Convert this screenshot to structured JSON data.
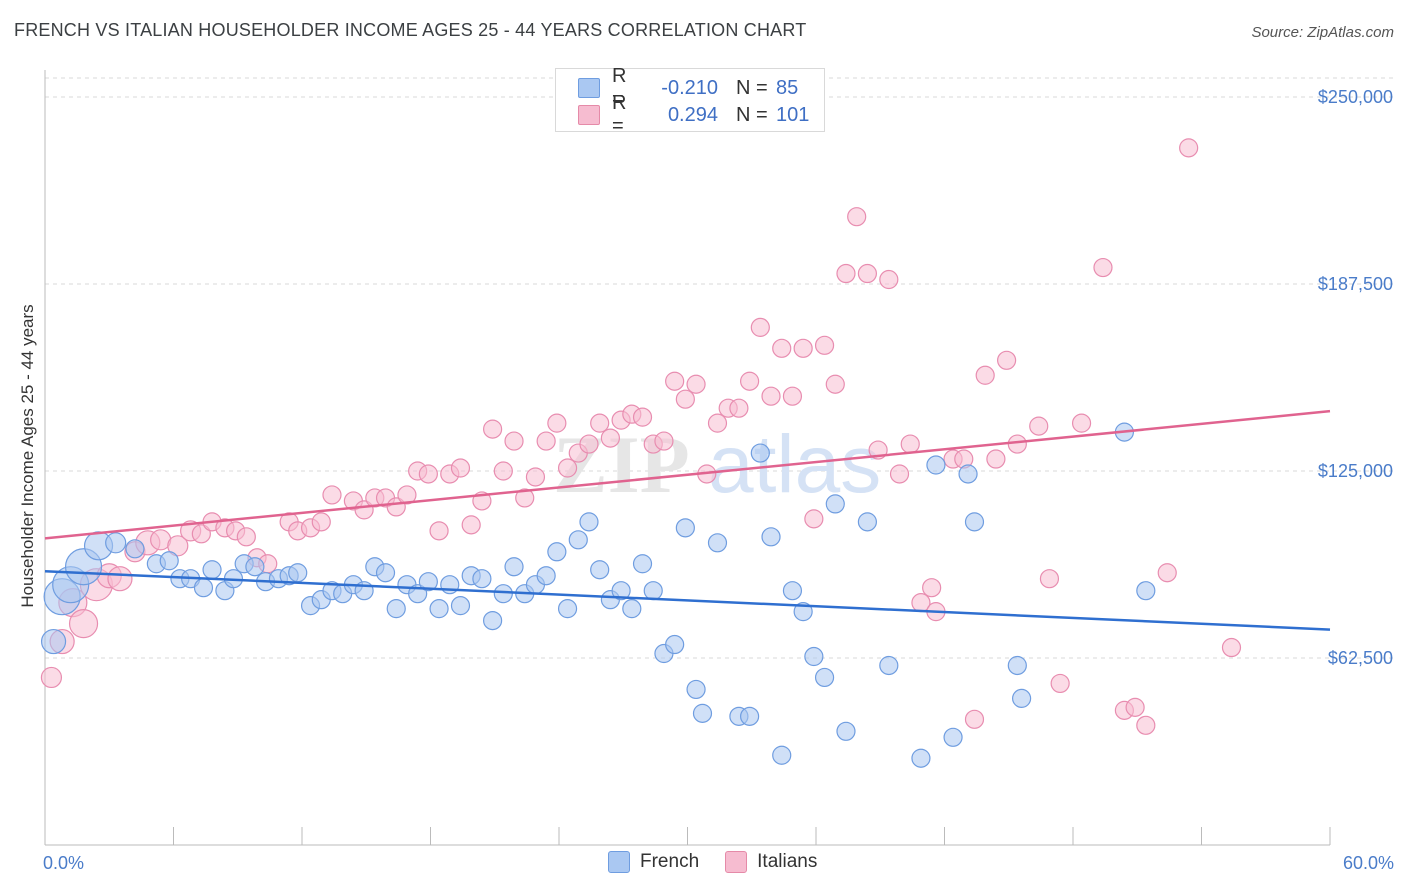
{
  "header": {
    "title": "FRENCH VS ITALIAN HOUSEHOLDER INCOME AGES 25 - 44 YEARS CORRELATION CHART",
    "source": "Source: ZipAtlas.com"
  },
  "watermark": {
    "part1": "ZIP",
    "part2": "atlas"
  },
  "legend": {
    "rows": [
      {
        "r_label": "R =",
        "r_value": "-0.210",
        "n_label": "N =",
        "n_value": "85",
        "fill": "#aac8f2",
        "stroke": "#6f9de0"
      },
      {
        "r_label": "R =",
        "r_value": "0.294",
        "n_label": "N =",
        "n_value": "101",
        "fill": "#f6bcd0",
        "stroke": "#e58aa8"
      }
    ]
  },
  "bottom_legend": {
    "french": "French",
    "italians": "Italians"
  },
  "colors": {
    "french_fill": "#a9c7f1",
    "french_stroke": "#6f9de0",
    "french_line": "#2f6fd0",
    "italian_fill": "#f7bdd1",
    "italian_stroke": "#e88db0",
    "italian_line": "#e0638f",
    "tick_text": "#4a7cc9",
    "grid": "#d9d9d9"
  },
  "chart_data": {
    "type": "scatter",
    "xlabel": "",
    "ylabel": "Householder Income Ages 25 - 44 years",
    "xlim": [
      0,
      60
    ],
    "ylim": [
      0,
      250000
    ],
    "x_tick_labels": [
      "0.0%",
      "60.0%"
    ],
    "y_ticks": [
      62500,
      125000,
      187500,
      250000
    ],
    "y_tick_labels": [
      "$62,500",
      "$125,000",
      "$187,500",
      "$250,000"
    ],
    "grid": "horizontal dashed",
    "legend_placement": "top-center",
    "series": [
      {
        "name": "French",
        "trend": {
          "x": [
            0,
            60
          ],
          "y": [
            91500,
            72000
          ]
        },
        "points": [
          [
            0.4,
            68000,
            12
          ],
          [
            0.8,
            83000,
            18
          ],
          [
            1.2,
            87000,
            18
          ],
          [
            1.8,
            93000,
            18
          ],
          [
            2.5,
            100000,
            14
          ],
          [
            3.3,
            101000,
            10
          ],
          [
            4.2,
            99000,
            9
          ],
          [
            5.2,
            94000,
            9
          ],
          [
            5.8,
            95000,
            9
          ],
          [
            6.3,
            89000,
            9
          ],
          [
            6.8,
            89000,
            9
          ],
          [
            7.4,
            86000,
            9
          ],
          [
            7.8,
            92000,
            9
          ],
          [
            8.4,
            85000,
            9
          ],
          [
            8.8,
            89000,
            9
          ],
          [
            9.3,
            94000,
            9
          ],
          [
            9.8,
            93000,
            9
          ],
          [
            10.3,
            88000,
            9
          ],
          [
            10.9,
            89000,
            9
          ],
          [
            11.4,
            90000,
            9
          ],
          [
            11.8,
            91000,
            9
          ],
          [
            12.4,
            80000,
            9
          ],
          [
            12.9,
            82000,
            9
          ],
          [
            13.4,
            85000,
            9
          ],
          [
            13.9,
            84000,
            9
          ],
          [
            14.4,
            87000,
            9
          ],
          [
            14.9,
            85000,
            9
          ],
          [
            15.4,
            93000,
            9
          ],
          [
            15.9,
            91000,
            9
          ],
          [
            16.4,
            79000,
            9
          ],
          [
            16.9,
            87000,
            9
          ],
          [
            17.4,
            84000,
            9
          ],
          [
            17.9,
            88000,
            9
          ],
          [
            18.4,
            79000,
            9
          ],
          [
            18.9,
            87000,
            9
          ],
          [
            19.4,
            80000,
            9
          ],
          [
            19.9,
            90000,
            9
          ],
          [
            20.4,
            89000,
            9
          ],
          [
            20.9,
            75000,
            9
          ],
          [
            21.4,
            84000,
            9
          ],
          [
            21.9,
            93000,
            9
          ],
          [
            22.4,
            84000,
            9
          ],
          [
            22.9,
            87000,
            9
          ],
          [
            23.4,
            90000,
            9
          ],
          [
            23.9,
            98000,
            9
          ],
          [
            24.4,
            79000,
            9
          ],
          [
            24.9,
            102000,
            9
          ],
          [
            25.4,
            108000,
            9
          ],
          [
            25.9,
            92000,
            9
          ],
          [
            26.4,
            82000,
            9
          ],
          [
            26.9,
            85000,
            9
          ],
          [
            27.4,
            79000,
            9
          ],
          [
            27.9,
            94000,
            9
          ],
          [
            28.4,
            85000,
            9
          ],
          [
            28.9,
            64000,
            9
          ],
          [
            29.4,
            67000,
            9
          ],
          [
            29.9,
            106000,
            9
          ],
          [
            30.4,
            52000,
            9
          ],
          [
            30.7,
            44000,
            9
          ],
          [
            31.4,
            101000,
            9
          ],
          [
            32.4,
            43000,
            9
          ],
          [
            32.9,
            43000,
            9
          ],
          [
            33.4,
            131000,
            9
          ],
          [
            33.9,
            103000,
            9
          ],
          [
            34.4,
            30000,
            9
          ],
          [
            34.9,
            85000,
            9
          ],
          [
            35.4,
            78000,
            9
          ],
          [
            35.9,
            63000,
            9
          ],
          [
            36.4,
            56000,
            9
          ],
          [
            36.9,
            114000,
            9
          ],
          [
            37.4,
            38000,
            9
          ],
          [
            38.4,
            108000,
            9
          ],
          [
            39.4,
            60000,
            9
          ],
          [
            40.9,
            29000,
            9
          ],
          [
            41.6,
            127000,
            9
          ],
          [
            42.4,
            36000,
            9
          ],
          [
            43.1,
            124000,
            9
          ],
          [
            43.4,
            108000,
            9
          ],
          [
            45.4,
            60000,
            9
          ],
          [
            45.6,
            49000,
            9
          ],
          [
            50.4,
            138000,
            9
          ],
          [
            51.4,
            85000,
            9
          ]
        ]
      },
      {
        "name": "Italians",
        "trend": {
          "x": [
            0,
            60
          ],
          "y": [
            102500,
            145000
          ]
        },
        "points": [
          [
            0.3,
            56000,
            10
          ],
          [
            0.8,
            68000,
            12
          ],
          [
            1.3,
            81000,
            14
          ],
          [
            1.8,
            74000,
            14
          ],
          [
            2.4,
            87000,
            16
          ],
          [
            3.0,
            90000,
            12
          ],
          [
            3.5,
            89000,
            12
          ],
          [
            4.2,
            98000,
            10
          ],
          [
            4.8,
            101000,
            12
          ],
          [
            5.4,
            102000,
            10
          ],
          [
            6.2,
            100000,
            10
          ],
          [
            6.8,
            105000,
            10
          ],
          [
            7.3,
            104000,
            9
          ],
          [
            7.8,
            108000,
            9
          ],
          [
            8.4,
            106000,
            9
          ],
          [
            8.9,
            105000,
            9
          ],
          [
            9.4,
            103000,
            9
          ],
          [
            9.9,
            96000,
            9
          ],
          [
            10.4,
            94000,
            9
          ],
          [
            11.4,
            108000,
            9
          ],
          [
            11.8,
            105000,
            9
          ],
          [
            12.4,
            106000,
            9
          ],
          [
            12.9,
            108000,
            9
          ],
          [
            13.4,
            117000,
            9
          ],
          [
            14.4,
            115000,
            9
          ],
          [
            14.9,
            112000,
            9
          ],
          [
            15.4,
            116000,
            9
          ],
          [
            15.9,
            116000,
            9
          ],
          [
            16.4,
            113000,
            9
          ],
          [
            16.9,
            117000,
            9
          ],
          [
            17.4,
            125000,
            9
          ],
          [
            17.9,
            124000,
            9
          ],
          [
            18.4,
            105000,
            9
          ],
          [
            18.9,
            124000,
            9
          ],
          [
            19.4,
            126000,
            9
          ],
          [
            19.9,
            107000,
            9
          ],
          [
            20.4,
            115000,
            9
          ],
          [
            20.9,
            139000,
            9
          ],
          [
            21.4,
            125000,
            9
          ],
          [
            21.9,
            135000,
            9
          ],
          [
            22.4,
            116000,
            9
          ],
          [
            22.9,
            123000,
            9
          ],
          [
            23.4,
            135000,
            9
          ],
          [
            23.9,
            141000,
            9
          ],
          [
            24.4,
            126000,
            9
          ],
          [
            24.9,
            131000,
            9
          ],
          [
            25.4,
            134000,
            9
          ],
          [
            25.9,
            141000,
            9
          ],
          [
            26.4,
            136000,
            9
          ],
          [
            26.9,
            142000,
            9
          ],
          [
            27.4,
            144000,
            9
          ],
          [
            27.9,
            143000,
            9
          ],
          [
            28.4,
            134000,
            9
          ],
          [
            28.9,
            135000,
            9
          ],
          [
            29.4,
            155000,
            9
          ],
          [
            29.9,
            149000,
            9
          ],
          [
            30.4,
            154000,
            9
          ],
          [
            30.9,
            124000,
            9
          ],
          [
            31.4,
            141000,
            9
          ],
          [
            31.9,
            146000,
            9
          ],
          [
            32.4,
            146000,
            9
          ],
          [
            32.9,
            155000,
            9
          ],
          [
            33.4,
            173000,
            9
          ],
          [
            33.9,
            150000,
            9
          ],
          [
            34.4,
            166000,
            9
          ],
          [
            34.9,
            150000,
            9
          ],
          [
            35.4,
            166000,
            9
          ],
          [
            35.9,
            109000,
            9
          ],
          [
            36.4,
            167000,
            9
          ],
          [
            36.9,
            154000,
            9
          ],
          [
            37.4,
            191000,
            9
          ],
          [
            37.9,
            210000,
            9
          ],
          [
            38.4,
            191000,
            9
          ],
          [
            38.9,
            132000,
            9
          ],
          [
            39.4,
            189000,
            9
          ],
          [
            39.9,
            124000,
            9
          ],
          [
            40.4,
            134000,
            9
          ],
          [
            40.9,
            81000,
            9
          ],
          [
            41.4,
            86000,
            9
          ],
          [
            41.6,
            78000,
            9
          ],
          [
            42.4,
            129000,
            9
          ],
          [
            42.9,
            129000,
            9
          ],
          [
            43.4,
            42000,
            9
          ],
          [
            43.9,
            157000,
            9
          ],
          [
            44.4,
            129000,
            9
          ],
          [
            44.9,
            162000,
            9
          ],
          [
            45.4,
            134000,
            9
          ],
          [
            46.4,
            140000,
            9
          ],
          [
            46.9,
            89000,
            9
          ],
          [
            47.4,
            54000,
            9
          ],
          [
            48.4,
            141000,
            9
          ],
          [
            49.4,
            193000,
            9
          ],
          [
            50.4,
            45000,
            9
          ],
          [
            50.9,
            46000,
            9
          ],
          [
            51.4,
            40000,
            9
          ],
          [
            52.4,
            91000,
            9
          ],
          [
            53.4,
            233000,
            9
          ],
          [
            55.4,
            66000,
            9
          ]
        ]
      }
    ]
  }
}
